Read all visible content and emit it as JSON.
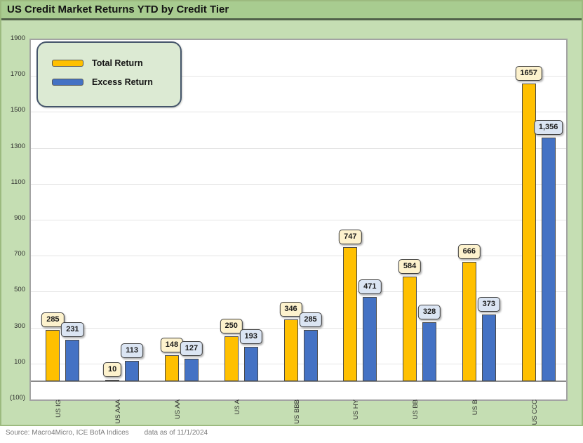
{
  "footer": {
    "source": "Source: Macro4Micro, ICE BofA Indices",
    "as_of": "data as of 11/1/2024"
  },
  "chart_data": {
    "type": "bar",
    "title": "US Credit Market Returns YTD by Credit Tier",
    "categories": [
      "US IG",
      "US AAA",
      "US AA",
      "US A",
      "US BBB",
      "US HY",
      "US BB",
      "US B",
      "US CCC"
    ],
    "series": [
      {
        "name": "Total Return",
        "color": "#FFC000",
        "label_fill": "#FDF2CD",
        "values": [
          285,
          10,
          148,
          250,
          346,
          747,
          584,
          666,
          1657
        ],
        "data_labels": [
          "285",
          "10",
          "148",
          "250",
          "346",
          "747",
          "584",
          "666",
          "1657"
        ]
      },
      {
        "name": "Excess Return",
        "color": "#4472C4",
        "label_fill": "#DBE5F3",
        "values": [
          231,
          113,
          127,
          193,
          285,
          471,
          328,
          373,
          1356
        ],
        "data_labels": [
          "231",
          "113",
          "127",
          "193",
          "285",
          "471",
          "328",
          "373",
          "1,356"
        ]
      }
    ],
    "ylim": [
      -100,
      1900
    ],
    "yticks": [
      {
        "v": 1900,
        "label": "1900"
      },
      {
        "v": 1700,
        "label": "1700"
      },
      {
        "v": 1500,
        "label": "1500"
      },
      {
        "v": 1300,
        "label": "1300"
      },
      {
        "v": 1100,
        "label": "1100"
      },
      {
        "v": 900,
        "label": "900"
      },
      {
        "v": 700,
        "label": "700"
      },
      {
        "v": 500,
        "label": "500"
      },
      {
        "v": 300,
        "label": "300"
      },
      {
        "v": 100,
        "label": "100"
      },
      {
        "v": -100,
        "label": "(100)"
      }
    ],
    "gridline_step": 200,
    "grid": true,
    "legend_position": "top-left",
    "colors": {
      "panel_background": "#C5DEB3",
      "title_band": "#A8CC90",
      "plot_background": "#FFFFFF",
      "total_bar": "#FFC000",
      "excess_bar": "#4472C4"
    }
  }
}
